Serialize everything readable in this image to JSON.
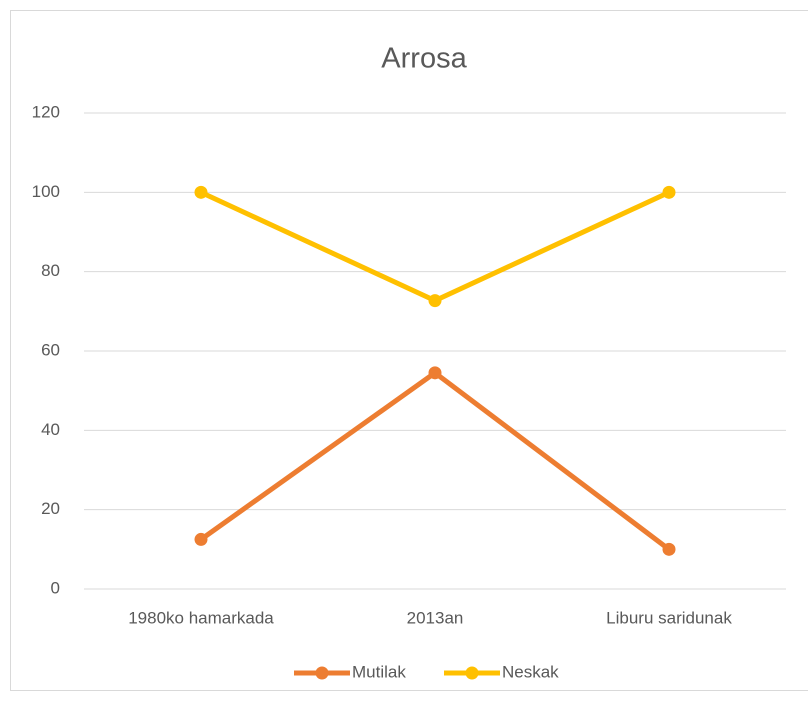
{
  "chart_data": {
    "type": "line",
    "title": "Arrosa",
    "categories": [
      "1980ko hamarkada",
      "2013an",
      "Liburu saridunak"
    ],
    "series": [
      {
        "name": "Mutilak",
        "color": "#ed7d31",
        "values": [
          12.5,
          54.5,
          10
        ]
      },
      {
        "name": "Neskak",
        "color": "#ffc000",
        "values": [
          100,
          72.7,
          100
        ]
      }
    ],
    "ylim": [
      0,
      120
    ],
    "yticks": [
      0,
      20,
      40,
      60,
      80,
      100,
      120
    ],
    "grid": true,
    "legend": "bottom"
  }
}
